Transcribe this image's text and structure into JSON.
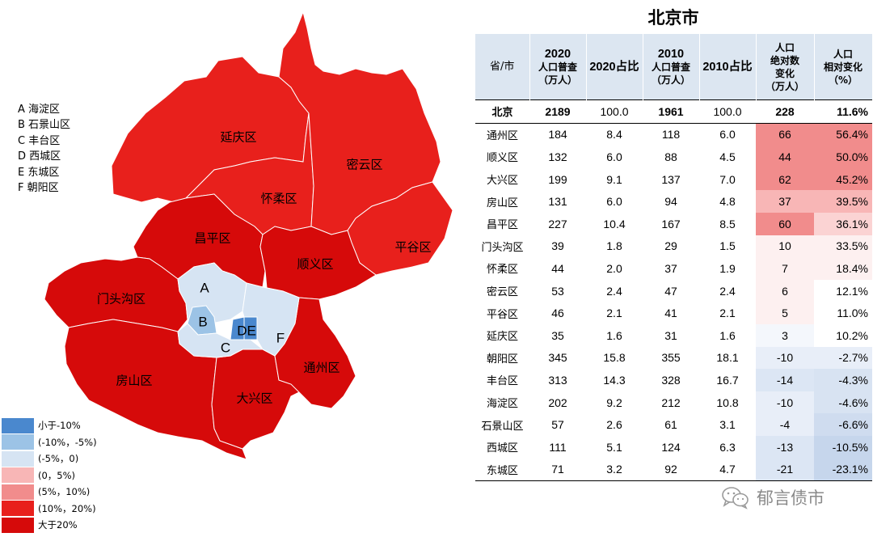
{
  "title": "北京市",
  "abbreviations": [
    "A 海淀区",
    "B 石景山区",
    "C 丰台区",
    "D 西城区",
    "E 东城区",
    "F 朝阳区"
  ],
  "map": {
    "districts": [
      "延庆区",
      "怀柔区",
      "密云区",
      "昌平区",
      "顺义区",
      "平谷区",
      "门头沟区",
      "房山区",
      "大兴区",
      "通州区"
    ],
    "letters": [
      "A",
      "B",
      "C",
      "DE",
      "F"
    ]
  },
  "legend": [
    "小于-10%",
    "(-10%，-5%)",
    "(-5%，0)",
    "(0，5%)",
    "(5%，10%)",
    "(10%，20%)",
    "大于20%"
  ],
  "colors": {
    "lt_neg10": "#4a88ce",
    "neg10_neg5": "#9cc3e6",
    "neg5_0": "#d6e4f3",
    "pos0_5": "#f8b6b6",
    "pos5_10": "#f18c8c",
    "pos10_20": "#e8201c",
    "gt20": "#d60a0a",
    "header_bg": "#dce6f1"
  },
  "table": {
    "headers": {
      "province": "省/市",
      "pop2020_year": "2020",
      "pop2020_l1": "人口普查",
      "pop2020_l2": "（万人）",
      "share2020": "2020占比",
      "pop2010_year": "2010",
      "pop2010_l1": "人口普查",
      "pop2010_l2": "（万人）",
      "share2010": "2010占比",
      "abs_l1": "人口",
      "abs_l2": "绝对数",
      "abs_l3": "变化",
      "abs_l4": "（万人）",
      "rel_l1": "人口",
      "rel_l2": "相对变化",
      "rel_l3": "（%）"
    },
    "rows": [
      [
        "北京",
        "2189",
        "100.0",
        "1961",
        "100.0",
        "228",
        "11.6%"
      ],
      [
        "通州区",
        "184",
        "8.4",
        "118",
        "6.0",
        "66",
        "56.4%"
      ],
      [
        "顺义区",
        "132",
        "6.0",
        "88",
        "4.5",
        "44",
        "50.0%"
      ],
      [
        "大兴区",
        "199",
        "9.1",
        "137",
        "7.0",
        "62",
        "45.2%"
      ],
      [
        "房山区",
        "131",
        "6.0",
        "94",
        "4.8",
        "37",
        "39.5%"
      ],
      [
        "昌平区",
        "227",
        "10.4",
        "167",
        "8.5",
        "60",
        "36.1%"
      ],
      [
        "门头沟区",
        "39",
        "1.8",
        "29",
        "1.5",
        "10",
        "33.5%"
      ],
      [
        "怀柔区",
        "44",
        "2.0",
        "37",
        "1.9",
        "7",
        "18.4%"
      ],
      [
        "密云区",
        "53",
        "2.4",
        "47",
        "2.4",
        "6",
        "12.1%"
      ],
      [
        "平谷区",
        "46",
        "2.1",
        "41",
        "2.1",
        "5",
        "11.0%"
      ],
      [
        "延庆区",
        "35",
        "1.6",
        "31",
        "1.6",
        "3",
        "10.2%"
      ],
      [
        "朝阳区",
        "345",
        "15.8",
        "355",
        "18.1",
        "-10",
        "-2.7%"
      ],
      [
        "丰台区",
        "313",
        "14.3",
        "328",
        "16.7",
        "-14",
        "-4.3%"
      ],
      [
        "海淀区",
        "202",
        "9.2",
        "212",
        "10.8",
        "-10",
        "-4.6%"
      ],
      [
        "石景山区",
        "57",
        "2.6",
        "61",
        "3.1",
        "-4",
        "-6.6%"
      ],
      [
        "西城区",
        "111",
        "5.1",
        "124",
        "6.3",
        "-13",
        "-10.5%"
      ],
      [
        "东城区",
        "71",
        "3.2",
        "92",
        "4.7",
        "-21",
        "-23.1%"
      ]
    ]
  },
  "watermark": "郁言债市",
  "chart_data": {
    "type": "table",
    "title": "北京市",
    "columns": [
      "省/市",
      "2020人口普查（万人）",
      "2020占比",
      "2010人口普查（万人）",
      "2010占比",
      "人口绝对数变化（万人）",
      "人口相对变化（%）"
    ],
    "categories": [
      "北京",
      "通州区",
      "顺义区",
      "大兴区",
      "房山区",
      "昌平区",
      "门头沟区",
      "怀柔区",
      "密云区",
      "平谷区",
      "延庆区",
      "朝阳区",
      "丰台区",
      "海淀区",
      "石景山区",
      "西城区",
      "东城区"
    ],
    "series": [
      {
        "name": "2020人口普查（万人）",
        "values": [
          2189,
          184,
          132,
          199,
          131,
          227,
          39,
          44,
          53,
          46,
          35,
          345,
          313,
          202,
          57,
          111,
          71
        ]
      },
      {
        "name": "2020占比",
        "values": [
          100.0,
          8.4,
          6.0,
          9.1,
          6.0,
          10.4,
          1.8,
          2.0,
          2.4,
          2.1,
          1.6,
          15.8,
          14.3,
          9.2,
          2.6,
          5.1,
          3.2
        ]
      },
      {
        "name": "2010人口普查（万人）",
        "values": [
          1961,
          118,
          88,
          137,
          94,
          167,
          29,
          37,
          47,
          41,
          31,
          355,
          328,
          212,
          61,
          124,
          92
        ]
      },
      {
        "name": "2010占比",
        "values": [
          100.0,
          6.0,
          4.5,
          7.0,
          4.8,
          8.5,
          1.5,
          1.9,
          2.4,
          2.1,
          1.6,
          18.1,
          16.7,
          10.8,
          3.1,
          6.3,
          4.7
        ]
      },
      {
        "name": "人口绝对数变化（万人）",
        "values": [
          228,
          66,
          44,
          62,
          37,
          60,
          10,
          7,
          6,
          5,
          3,
          -10,
          -14,
          -10,
          -4,
          -13,
          -21
        ]
      },
      {
        "name": "人口相对变化（%）",
        "values": [
          11.6,
          56.4,
          50.0,
          45.2,
          39.5,
          36.1,
          33.5,
          18.4,
          12.1,
          11.0,
          10.2,
          -2.7,
          -4.3,
          -4.6,
          -6.6,
          -10.5,
          -23.1
        ]
      }
    ]
  }
}
